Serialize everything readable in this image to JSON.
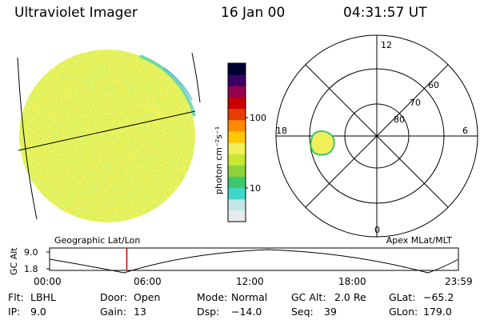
{
  "header": {
    "instrument": "Ultraviolet Imager",
    "date": "16 Jan 00",
    "time": "04:31:57 UT"
  },
  "colorbar": {
    "unit_label": "photon cm⁻²s⁻¹",
    "tick_labels": [
      "100",
      "10"
    ],
    "colors": [
      "#e8ecec",
      "#c4e6e6",
      "#3fd7c8",
      "#3cc86e",
      "#8cd238",
      "#c8e632",
      "#f0f05a",
      "#ffc800",
      "#ff8c00",
      "#e63c00",
      "#c80000",
      "#960050",
      "#3c0064",
      "#000032"
    ]
  },
  "polar_plot": {
    "mlt_labels": {
      "top": "12",
      "left": "18",
      "right": "6",
      "bottom": "0"
    },
    "lat_labels": [
      "60",
      "70",
      "80"
    ]
  },
  "altitude_panel": {
    "left_title": "Geographic Lat/Lon",
    "right_title": "Apex MLat/MLT",
    "y_axis_title": "GC Alt",
    "y_ticks": [
      "9.0",
      "1.8"
    ],
    "x_ticks": [
      "00:00",
      "06:00",
      "12:00",
      "18:00",
      "23:59"
    ],
    "current_time_hours": 4.53
  },
  "footer": {
    "row1": [
      {
        "label": "Flt:",
        "value": "LBHL"
      },
      {
        "label": "Door:",
        "value": "Open"
      },
      {
        "label": "Mode:",
        "value": "Normal"
      },
      {
        "label": "GC Alt:",
        "value": "2.0 Re"
      },
      {
        "label": "GLat:",
        "value": "−65.2"
      }
    ],
    "row2": [
      {
        "label": "IP:",
        "value": "9.0"
      },
      {
        "label": "Gain:",
        "value": "13"
      },
      {
        "label": "Dsp:",
        "value": "−14.0"
      },
      {
        "label": "Seq:",
        "value": "39"
      },
      {
        "label": "GLon:",
        "value": "179.0"
      }
    ]
  }
}
